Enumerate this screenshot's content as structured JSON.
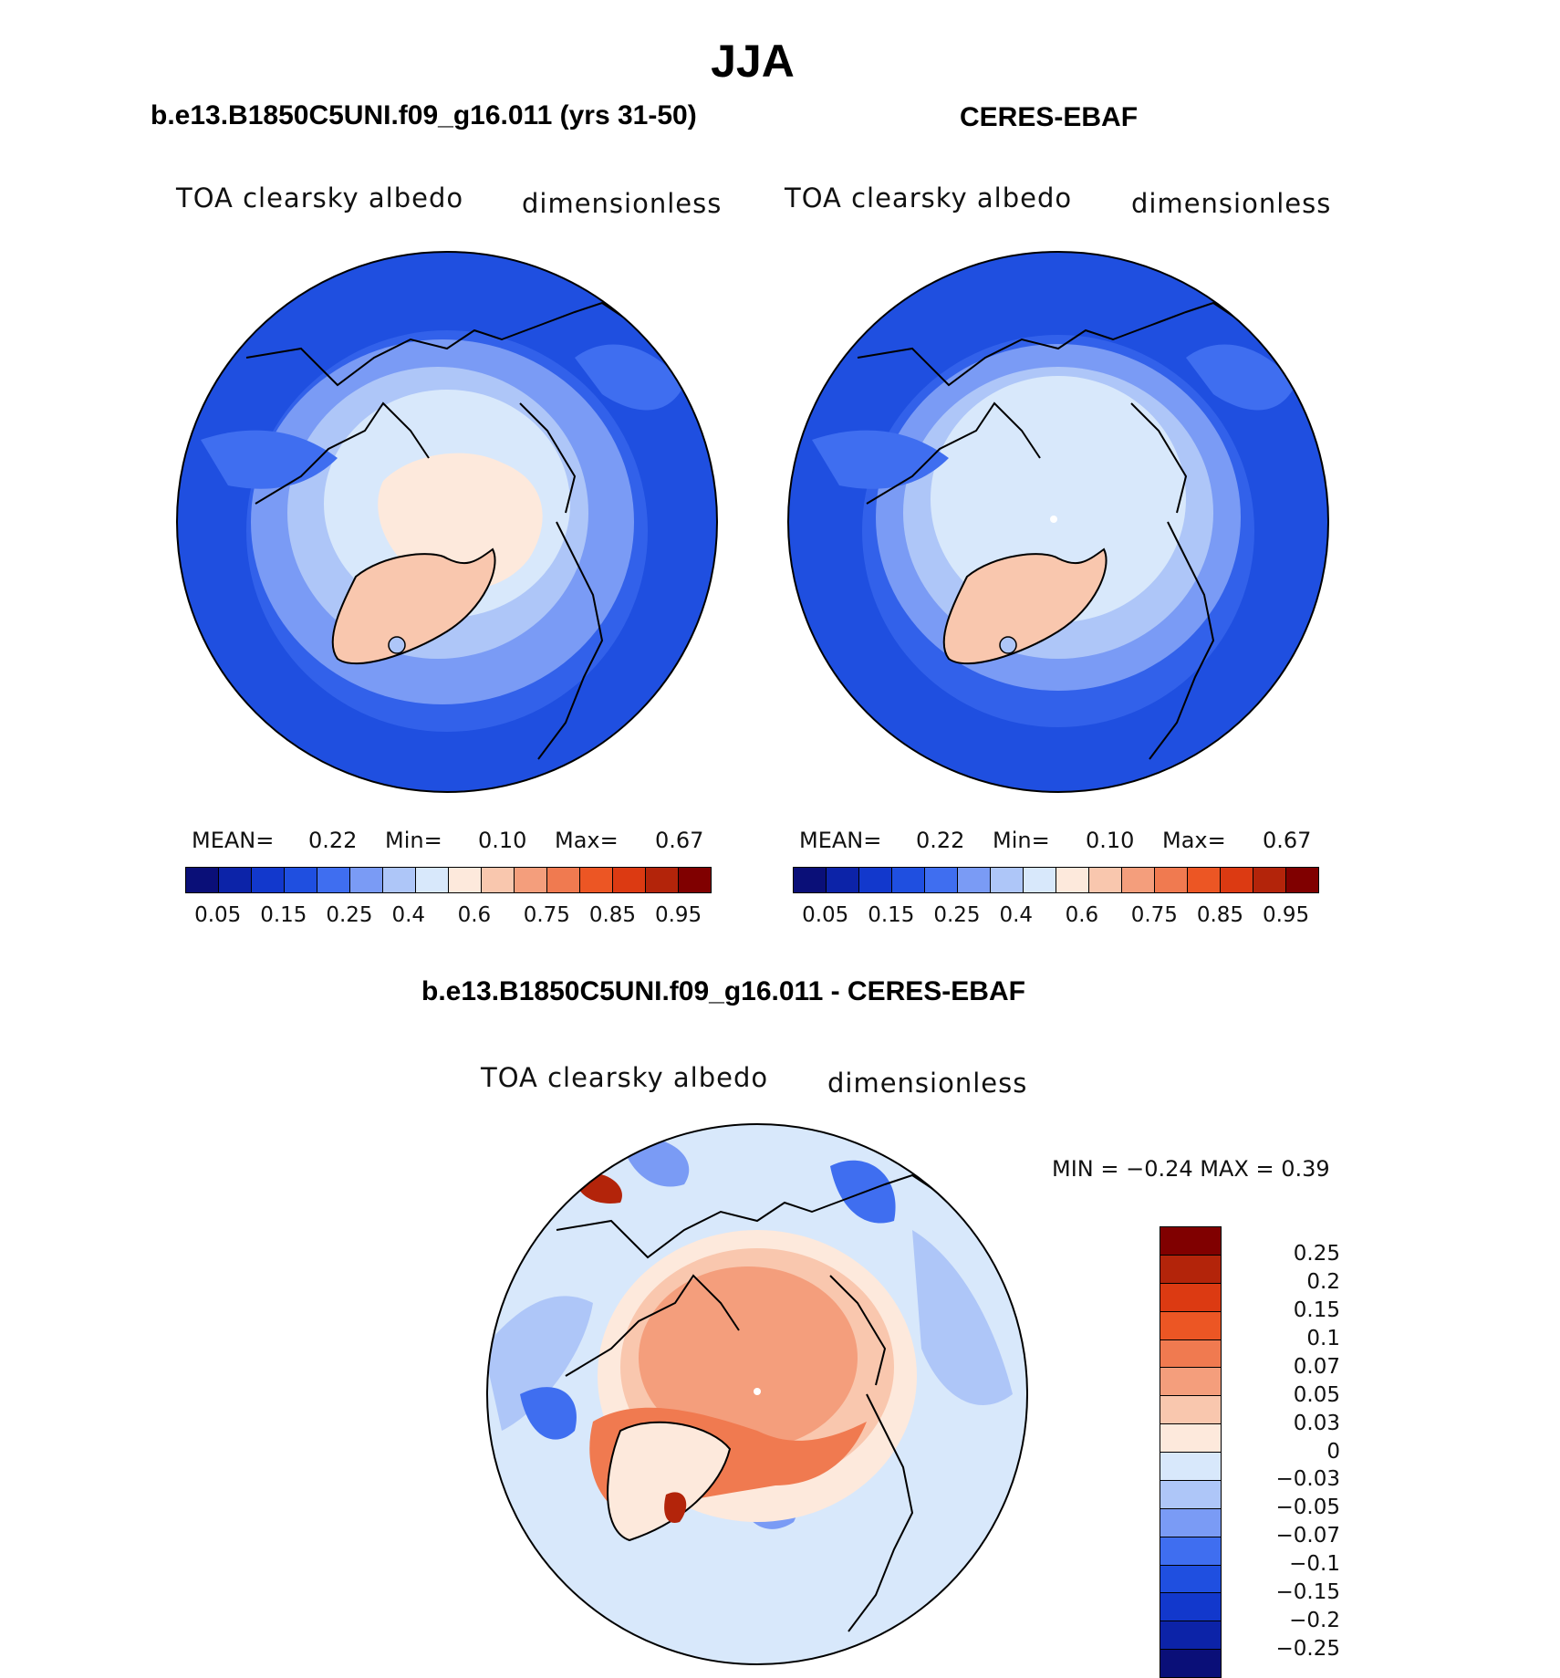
{
  "chart_data": [
    {
      "type": "heatmap",
      "title": "b.e13.B1850C5UNI.f09_g16.011 (yrs 31-50)",
      "variable": "TOA clearsky albedo",
      "units": "dimensionless",
      "projection": "north polar stereographic",
      "stats": {
        "mean_label": "MEAN=",
        "mean": "0.22",
        "min_label": "Min=",
        "min": "0.10",
        "max_label": "Max=",
        "max": "0.67"
      },
      "levels": [
        "0.05",
        "0.15",
        "0.25",
        "0.4",
        "0.6",
        "0.75",
        "0.85",
        "0.95"
      ],
      "colors": [
        "#0a0f78",
        "#0c23a8",
        "#1238cc",
        "#1f4fe0",
        "#3f6ef0",
        "#7a9bf5",
        "#aec6f8",
        "#d8e8fb",
        "#fde9dc",
        "#f9c7ae",
        "#f49e7c",
        "#f07a50",
        "#ec5624",
        "#dc3a12",
        "#b3240a",
        "#800000"
      ]
    },
    {
      "type": "heatmap",
      "title": "CERES-EBAF",
      "variable": "TOA clearsky albedo",
      "units": "dimensionless",
      "projection": "north polar stereographic",
      "stats": {
        "mean_label": "MEAN=",
        "mean": "0.22",
        "min_label": "Min=",
        "min": "0.10",
        "max_label": "Max=",
        "max": "0.67"
      },
      "levels": [
        "0.05",
        "0.15",
        "0.25",
        "0.4",
        "0.6",
        "0.75",
        "0.85",
        "0.95"
      ],
      "colors": [
        "#0a0f78",
        "#0c23a8",
        "#1238cc",
        "#1f4fe0",
        "#3f6ef0",
        "#7a9bf5",
        "#aec6f8",
        "#d8e8fb",
        "#fde9dc",
        "#f9c7ae",
        "#f49e7c",
        "#f07a50",
        "#ec5624",
        "#dc3a12",
        "#b3240a",
        "#800000"
      ]
    },
    {
      "type": "heatmap",
      "title": "b.e13.B1850C5UNI.f09_g16.011 - CERES-EBAF",
      "variable": "TOA clearsky albedo",
      "units": "dimensionless",
      "projection": "north polar stereographic",
      "stats": {
        "label": "MIN =  −0.24 MAX =    0.39"
      },
      "levels": [
        "0.25",
        "0.2",
        "0.15",
        "0.1",
        "0.07",
        "0.05",
        "0.03",
        "0",
        "−0.03",
        "−0.05",
        "−0.07",
        "−0.1",
        "−0.15",
        "−0.2",
        "−0.25"
      ],
      "colors": [
        "#800000",
        "#b3240a",
        "#dc3a12",
        "#ec5624",
        "#f07a50",
        "#f49e7c",
        "#f9c7ae",
        "#fde9dc",
        "#d8e8fb",
        "#aec6f8",
        "#7a9bf5",
        "#3f6ef0",
        "#1f4fe0",
        "#1238cc",
        "#0c23a8",
        "#0a0f78"
      ]
    }
  ],
  "page": {
    "season": "JJA"
  }
}
